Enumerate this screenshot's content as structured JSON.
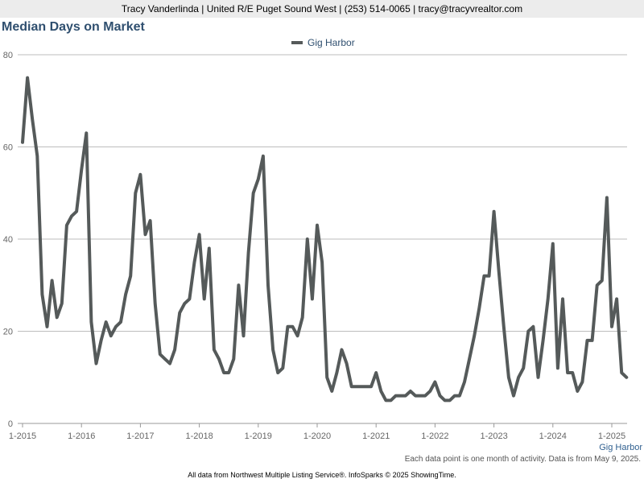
{
  "header": {
    "contact": "Tracy Vanderlinda | United R/E Puget Sound West | (253) 514-0065 | tracy@tracyvrealtor.com"
  },
  "footer": {
    "note": "Each data point is one month of activity. Data is from May 9, 2025.",
    "source": "All data from Northwest Multiple Listing Service®. InfoSparks © 2025 ShowingTime."
  },
  "colors": {
    "series": "#555a5a",
    "title": "#2f4f6f",
    "grid": "#bdbdbd"
  },
  "chart_data": {
    "type": "line",
    "title": "Median Days on Market",
    "xlabel": "",
    "ylabel": "",
    "ylim": [
      0,
      80
    ],
    "yticks": [
      0,
      20,
      40,
      60,
      80
    ],
    "xticks": [
      "1-2015",
      "1-2016",
      "1-2017",
      "1-2018",
      "1-2019",
      "1-2020",
      "1-2021",
      "1-2022",
      "1-2023",
      "1-2024",
      "1-2025"
    ],
    "x_start": "1-2015",
    "grid": true,
    "legend_position": "top-center",
    "series": [
      {
        "name": "Gig Harbor",
        "end_label": "Gig Harbor",
        "values": [
          61,
          75,
          66,
          58,
          28,
          21,
          31,
          23,
          26,
          43,
          45,
          46,
          55,
          63,
          22,
          13,
          18,
          22,
          19,
          21,
          22,
          28,
          32,
          50,
          54,
          41,
          44,
          26,
          15,
          14,
          13,
          16,
          24,
          26,
          27,
          35,
          41,
          27,
          38,
          16,
          14,
          11,
          11,
          14,
          30,
          19,
          37,
          50,
          53,
          58,
          30,
          16,
          11,
          12,
          21,
          21,
          19,
          23,
          40,
          27,
          43,
          35,
          10,
          7,
          11,
          16,
          13,
          8,
          8,
          8,
          8,
          8,
          11,
          7,
          5,
          5,
          6,
          6,
          6,
          7,
          6,
          6,
          6,
          7,
          9,
          6,
          5,
          5,
          6,
          6,
          9,
          14,
          19,
          25,
          32,
          32,
          46,
          33,
          21,
          10,
          6,
          10,
          12,
          20,
          21,
          10,
          18,
          27,
          39,
          12,
          27,
          11,
          11,
          7,
          9,
          18,
          18,
          30,
          31,
          49,
          21,
          27,
          11,
          10
        ]
      }
    ]
  }
}
